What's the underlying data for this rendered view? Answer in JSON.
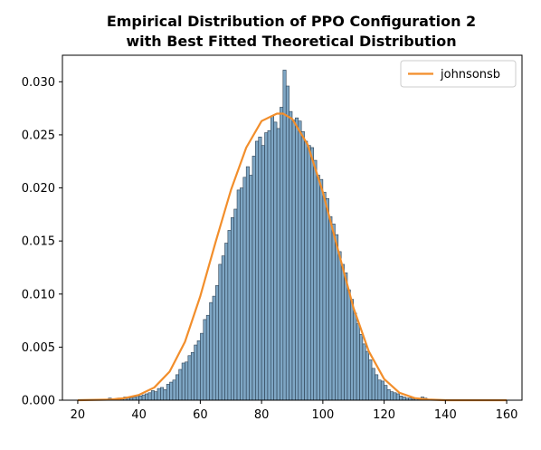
{
  "chart_data": {
    "type": "bar",
    "title_lines": [
      "Empirical Distribution of PPO Configuration 2",
      "with Best Fitted Theoretical Distribution"
    ],
    "xlabel": "",
    "ylabel": "",
    "xlim": [
      15,
      165
    ],
    "ylim": [
      0,
      0.0325
    ],
    "xticks": [
      20,
      40,
      60,
      80,
      100,
      120,
      140,
      160
    ],
    "xtick_labels": [
      "20",
      "40",
      "60",
      "80",
      "100",
      "120",
      "140",
      "160"
    ],
    "yticks": [
      0,
      0.005,
      0.01,
      0.015,
      0.02,
      0.025,
      0.03
    ],
    "ytick_labels": [
      "0.000",
      "0.005",
      "0.010",
      "0.015",
      "0.020",
      "0.025",
      "0.030"
    ],
    "grid": false,
    "histogram": {
      "bin_start": 30,
      "bin_width": 1,
      "bar_fill": "#7ea6c4",
      "bar_edge": "#2b3f52",
      "densities": [
        0.0002,
        0.0001,
        0.0001,
        0.0002,
        0.0001,
        0.0003,
        0.0002,
        0.0002,
        0.0003,
        0.0004,
        0.0004,
        0.0005,
        0.0006,
        0.0007,
        0.0009,
        0.0008,
        0.0011,
        0.0012,
        0.001,
        0.0015,
        0.0017,
        0.0019,
        0.0024,
        0.0029,
        0.0035,
        0.0036,
        0.0042,
        0.0045,
        0.0052,
        0.0056,
        0.0063,
        0.0076,
        0.008,
        0.0092,
        0.0098,
        0.0108,
        0.0128,
        0.0136,
        0.0148,
        0.016,
        0.0172,
        0.018,
        0.0198,
        0.02,
        0.021,
        0.022,
        0.0212,
        0.023,
        0.0244,
        0.0248,
        0.024,
        0.0252,
        0.0254,
        0.0268,
        0.0262,
        0.0256,
        0.0276,
        0.0311,
        0.0296,
        0.0272,
        0.0264,
        0.0266,
        0.0263,
        0.0253,
        0.0244,
        0.024,
        0.0238,
        0.0226,
        0.0212,
        0.0208,
        0.0196,
        0.019,
        0.0173,
        0.0166,
        0.0156,
        0.014,
        0.0128,
        0.012,
        0.0104,
        0.0095,
        0.0082,
        0.0072,
        0.0062,
        0.0053,
        0.0046,
        0.0038,
        0.003,
        0.0024,
        0.0019,
        0.0018,
        0.0014,
        0.001,
        0.0008,
        0.0007,
        0.0006,
        0.0004,
        0.0003,
        0.0002,
        0.0002,
        0.0001,
        0.0002,
        0.0001,
        0.0003,
        0.0002,
        0.0001
      ]
    },
    "series": [
      {
        "name": "johnsonsb",
        "color": "#f28e2b",
        "x": [
          20,
          30,
          35,
          40,
          45,
          50,
          55,
          60,
          65,
          70,
          75,
          80,
          85,
          87,
          90,
          95,
          100,
          105,
          110,
          115,
          120,
          125,
          130,
          135,
          140,
          145,
          150,
          155,
          160
        ],
        "y": [
          0.0,
          5e-05,
          0.00018,
          0.0005,
          0.0012,
          0.0027,
          0.0055,
          0.0098,
          0.0149,
          0.0198,
          0.0238,
          0.0263,
          0.027,
          0.027,
          0.0265,
          0.0241,
          0.0196,
          0.0141,
          0.0087,
          0.0046,
          0.002,
          0.0007,
          0.0002,
          5e-05,
          0.0,
          0.0,
          0.0,
          0.0,
          0.0
        ]
      }
    ],
    "legend": {
      "position": "top-right",
      "entries": [
        {
          "label": "johnsonsb",
          "color": "#f28e2b"
        }
      ]
    }
  }
}
